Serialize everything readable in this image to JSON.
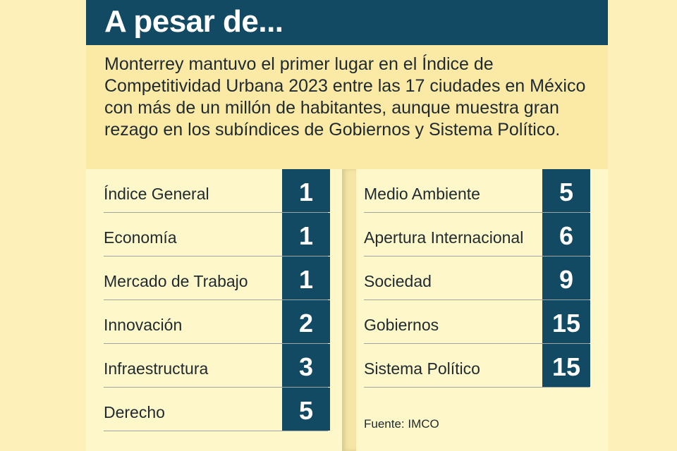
{
  "title": "A pesar de...",
  "intro": "Monterrey mantuvo el primer lugar en el Índice de Competitividad Urbana 2023 entre las 17 ciudades en México con más de un millón de habitantes, aunque muestra gran rezago en los subíndices de Gobiernos y Sistema Político.",
  "source": "Fuente: IMCO",
  "colors": {
    "header": "#134a63",
    "card": "#fef7c9",
    "accent_text": "#ffffff"
  },
  "chart_data": {
    "type": "table",
    "columns": [
      [
        {
          "label": "Índice General",
          "rank": "1"
        },
        {
          "label": "Economía",
          "rank": "1"
        },
        {
          "label": "Mercado de Trabajo",
          "rank": "1"
        },
        {
          "label": "Innovación",
          "rank": "2"
        },
        {
          "label": "Infraestructura",
          "rank": "3"
        },
        {
          "label": "Derecho",
          "rank": "5"
        }
      ],
      [
        {
          "label": "Medio Ambiente",
          "rank": "5"
        },
        {
          "label": "Apertura Internacional",
          "rank": "6"
        },
        {
          "label": "Sociedad",
          "rank": "9"
        },
        {
          "label": "Gobiernos",
          "rank": "15"
        },
        {
          "label": "Sistema Político",
          "rank": "15"
        }
      ]
    ]
  }
}
